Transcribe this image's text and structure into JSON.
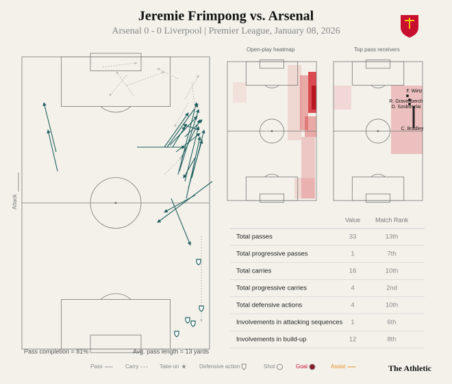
{
  "header": {
    "title": "Jeremie Frimpong vs. Arsenal",
    "subtitle": "Arsenal 0 - 0 Liverpool | Premier League, January 08, 2026"
  },
  "pitch": {
    "attack_label": "Attack",
    "pass_completion": "Pass completion = 81%",
    "avg_pass_length": "Avg. pass length = 13 yards"
  },
  "heatmap": {
    "title": "Open-play heatmap"
  },
  "receivers": {
    "title": "Top pass receivers",
    "players": [
      "F. Wirtz",
      "R. Gravenberch",
      "D. Szoboszlai",
      "C. Bradley"
    ]
  },
  "table": {
    "columns": [
      "Value",
      "Match Rank"
    ],
    "rows": [
      [
        "Total passes",
        33,
        "13th"
      ],
      [
        "Total progressive passes",
        1,
        "7th"
      ],
      [
        "Total carries",
        16,
        "10th"
      ],
      [
        "Total progressive carries",
        4,
        "2nd"
      ],
      [
        "Total defensive actions",
        4,
        "10th"
      ],
      [
        "Involvements in attacking sequences",
        1,
        "6th"
      ],
      [
        "Involvements in build-up",
        12,
        "8th"
      ]
    ]
  },
  "legend": {
    "items": [
      "Pass",
      "Carry",
      "Take-on",
      "Defensive action",
      "Shot",
      "Goal",
      "Assist"
    ]
  },
  "footer": {
    "brand": "The Athletic"
  }
}
